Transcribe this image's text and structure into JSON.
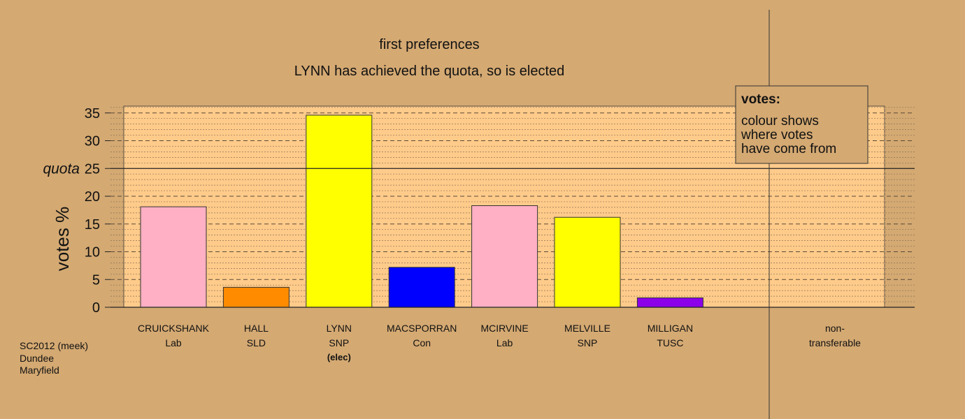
{
  "chart_data": {
    "type": "bar",
    "title": "first preferences",
    "subtitle": "LYNN has achieved the quota, so is elected",
    "ylabel": "votes %",
    "ylim": [
      0,
      36.2
    ],
    "yticks": [
      0,
      5,
      10,
      15,
      20,
      25,
      30,
      35
    ],
    "quota": {
      "label": "quota",
      "value": 25
    },
    "grid": true,
    "categories": [
      {
        "name": "CRUICKSHANK",
        "party": "Lab",
        "value": 18.1,
        "color": "#FFB0C4"
      },
      {
        "name": "HALL",
        "party": "SLD",
        "value": 3.6,
        "color": "#FF8C00"
      },
      {
        "name": "LYNN",
        "party": "SNP",
        "note": "(elec)",
        "value": 34.6,
        "color": "#FFFF00"
      },
      {
        "name": "MACSPORRAN",
        "party": "Con",
        "value": 7.2,
        "color": "#0000FF"
      },
      {
        "name": "MCIRVINE",
        "party": "Lab",
        "value": 18.3,
        "color": "#FFB0C4"
      },
      {
        "name": "MELVILLE",
        "party": "SNP",
        "value": 16.2,
        "color": "#FFFF00"
      },
      {
        "name": "MILLIGAN",
        "party": "TUSC",
        "value": 1.7,
        "color": "#8B00E8"
      }
    ],
    "nontransferable": {
      "line1": "non-",
      "line2": "transferable",
      "value": 0
    },
    "legend": {
      "title": "votes:",
      "lines": [
        "colour shows",
        "where votes",
        "have come from"
      ],
      "placement": "top-right"
    }
  },
  "footer": {
    "lines": [
      "SC2012 (meek)",
      "Dundee",
      "Maryfield"
    ]
  },
  "colors": {
    "background": "#D4A972",
    "plot_fill": "#FFCB8A"
  }
}
